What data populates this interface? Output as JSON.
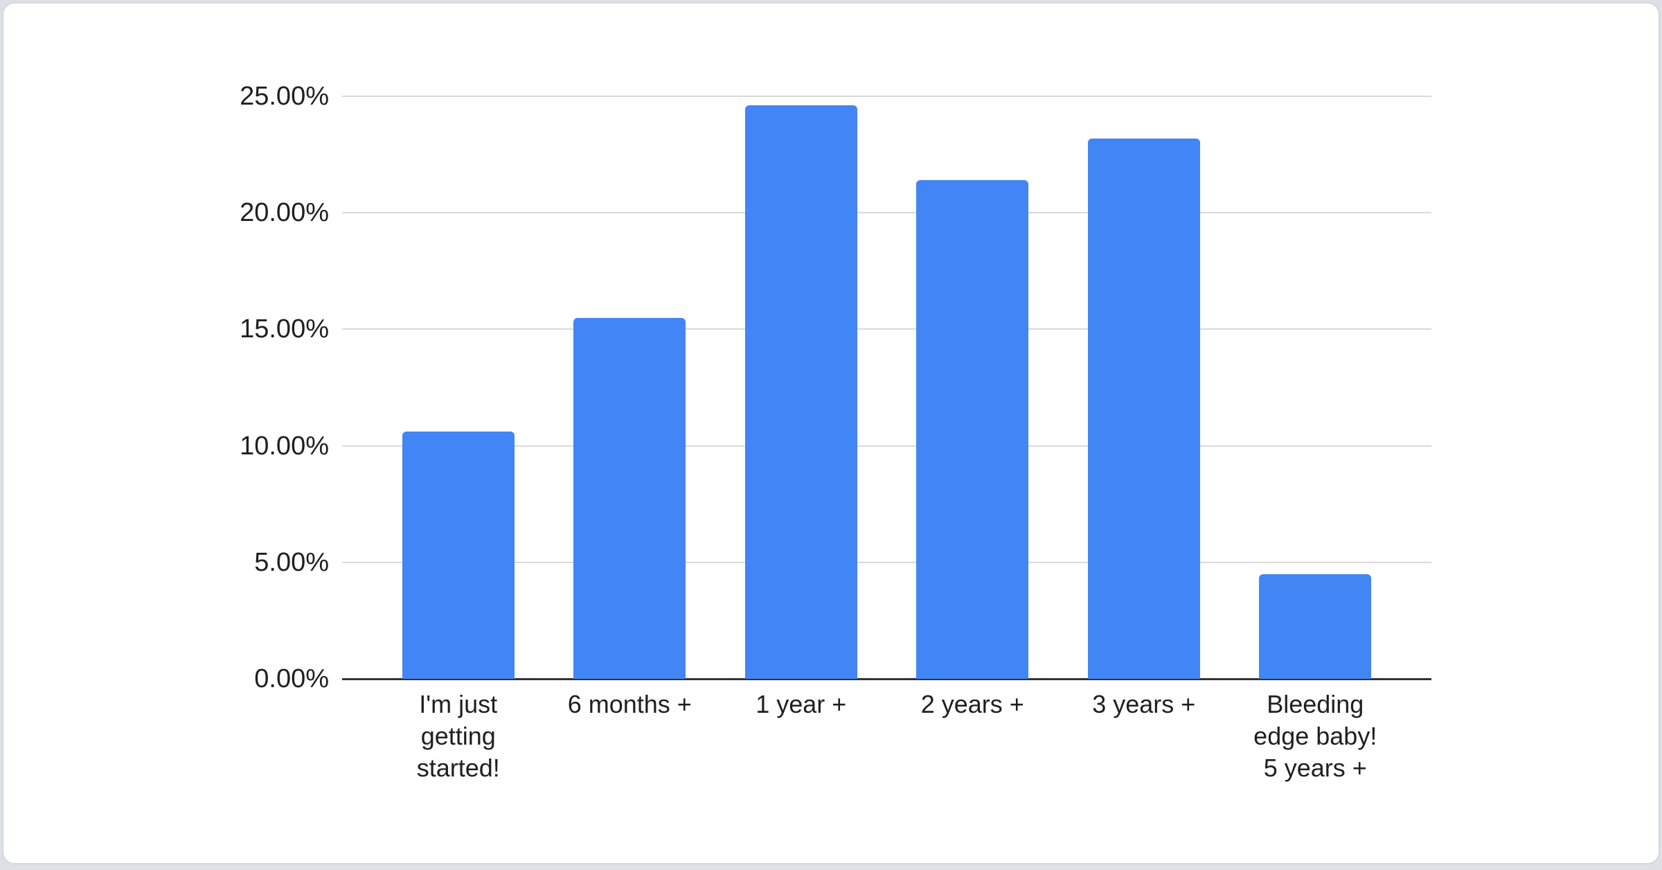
{
  "chart_data": {
    "type": "bar",
    "categories": [
      [
        "I'm just",
        "getting",
        "started!"
      ],
      [
        "6 months +"
      ],
      [
        "1 year +"
      ],
      [
        "2 years +"
      ],
      [
        "3 years +"
      ],
      [
        "Bleeding",
        "edge baby!",
        "5 years +"
      ]
    ],
    "values": [
      10.6,
      15.5,
      24.6,
      21.4,
      23.2,
      4.5
    ],
    "value_unit": "%",
    "y_tick_values": [
      0,
      5,
      10,
      15,
      20,
      25
    ],
    "y_tick_labels": [
      "0.00%",
      "5.00%",
      "10.00%",
      "15.00%",
      "20.00%",
      "25.00%"
    ],
    "ylim": [
      0,
      25
    ],
    "grid": "horizontal",
    "legend": "none",
    "bar_color": "#4285f4",
    "gridline_color": "#d9d9d9",
    "axis_line_color": "#333333",
    "label_color": "#1f1f1f"
  }
}
